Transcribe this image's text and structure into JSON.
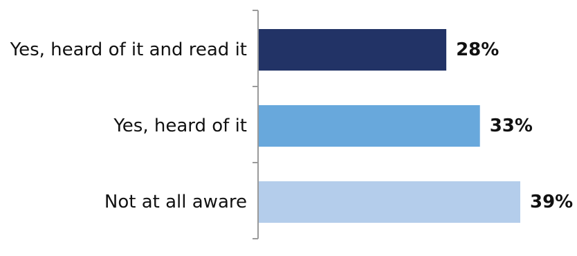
{
  "chart_data": {
    "type": "bar",
    "orientation": "horizontal",
    "categories": [
      "Yes, heard of it and read it",
      "Yes, heard of it",
      "Not at all aware"
    ],
    "values": [
      28,
      33,
      39
    ],
    "value_labels": [
      "28%",
      "33%",
      "39%"
    ],
    "colors": [
      "#223366",
      "#68a8dc",
      "#b4cdeb"
    ],
    "unit": "%",
    "title": "",
    "xlabel": "",
    "ylabel": "",
    "xlim": [
      0,
      39
    ],
    "grid": false,
    "legend": "none"
  }
}
